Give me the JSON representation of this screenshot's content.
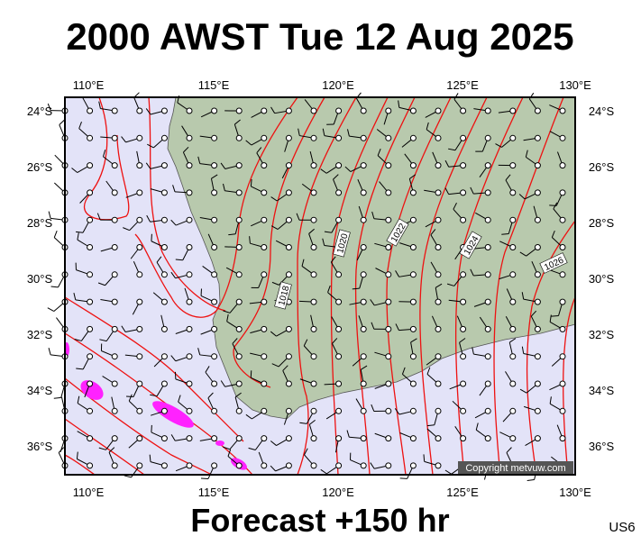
{
  "header": {
    "title": "2000 AWST Tue 12 Aug 2025"
  },
  "map": {
    "x_labels": [
      "110°E",
      "115°E",
      "120°E",
      "125°E",
      "130°E"
    ],
    "y_labels": [
      "24°S",
      "26°S",
      "28°S",
      "30°S",
      "32°S",
      "34°S",
      "36°S"
    ],
    "isobar_labels": [
      "1018",
      "1020",
      "1022",
      "1024",
      "1026"
    ],
    "credit": "Copyright metvuw.com"
  },
  "footer": {
    "forecast": "Forecast +150 hr",
    "code": "US6"
  }
}
